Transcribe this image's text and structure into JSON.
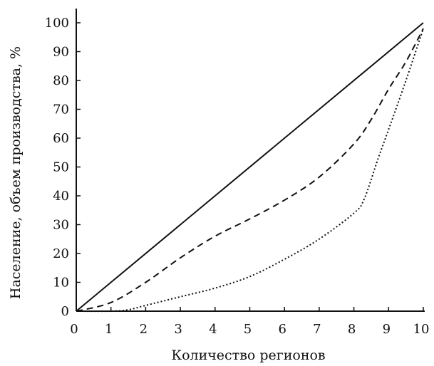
{
  "chart_data": {
    "type": "line",
    "title": "",
    "xlabel": "Количество регионов",
    "ylabel": "Население, объем производства, %",
    "xlim": [
      0,
      10
    ],
    "ylim": [
      0,
      100
    ],
    "xticks": [
      0,
      1,
      2,
      3,
      4,
      5,
      6,
      7,
      8,
      9,
      10
    ],
    "yticks": [
      0,
      10,
      20,
      30,
      40,
      50,
      60,
      70,
      80,
      90,
      100
    ],
    "grid": false,
    "legend": "none",
    "series": [
      {
        "style": "solid",
        "x": [
          0,
          10
        ],
        "y": [
          0,
          100
        ]
      },
      {
        "style": "dashed",
        "x": [
          0,
          1,
          2,
          3,
          4,
          5,
          6,
          7,
          8,
          8.5,
          9,
          9.5,
          10
        ],
        "y": [
          0,
          3,
          10,
          18.5,
          26,
          32,
          38.5,
          46.5,
          58,
          66.5,
          77,
          86.5,
          98
        ]
      },
      {
        "style": "dotted",
        "x": [
          0,
          1,
          1.5,
          2,
          3,
          4,
          5,
          6,
          7,
          8,
          8.3,
          8.7,
          9,
          9.5,
          10
        ],
        "y": [
          0,
          0,
          0.5,
          2,
          5,
          8,
          12,
          18,
          25,
          34,
          39,
          53,
          63,
          80,
          98
        ]
      }
    ]
  }
}
